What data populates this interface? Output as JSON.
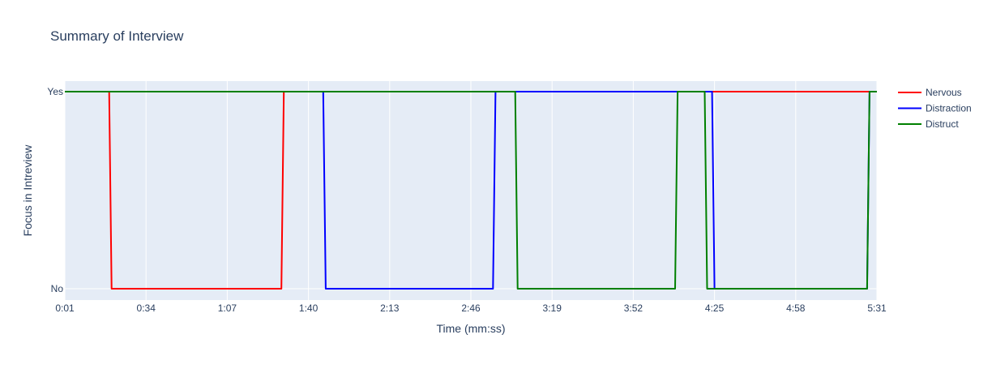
{
  "chart_data": {
    "type": "line",
    "title": "Summary of Interview",
    "xlabel": "Time (mm:ss)",
    "ylabel": "Focus in Intreview",
    "x_ticks": [
      "0:01",
      "0:34",
      "1:07",
      "1:40",
      "2:13",
      "2:46",
      "3:19",
      "3:52",
      "4:25",
      "4:58",
      "5:31"
    ],
    "y_categories": [
      "No",
      "Yes"
    ],
    "xlim": [
      "0:01",
      "5:31"
    ],
    "grid": true,
    "legend_position": "right",
    "colors": {
      "plot_background": "#e5ecf6",
      "grid": "#ffffff"
    },
    "series": [
      {
        "name": "Nervous",
        "color": "#ff0000",
        "points": [
          [
            "0:01",
            "Yes"
          ],
          [
            "0:19",
            "Yes"
          ],
          [
            "0:20",
            "No"
          ],
          [
            "1:29",
            "No"
          ],
          [
            "1:30",
            "Yes"
          ],
          [
            "5:31",
            "Yes"
          ]
        ]
      },
      {
        "name": "Distraction",
        "color": "#0000ff",
        "points": [
          [
            "0:01",
            "Yes"
          ],
          [
            "1:46",
            "Yes"
          ],
          [
            "1:47",
            "No"
          ],
          [
            "2:55",
            "No"
          ],
          [
            "2:56",
            "Yes"
          ],
          [
            "4:24",
            "Yes"
          ],
          [
            "4:25",
            "No"
          ],
          [
            "5:27",
            "No"
          ],
          [
            "5:28",
            "Yes"
          ],
          [
            "5:31",
            "Yes"
          ]
        ]
      },
      {
        "name": "Distruct",
        "color": "#008000",
        "points": [
          [
            "0:01",
            "Yes"
          ],
          [
            "3:04",
            "Yes"
          ],
          [
            "3:05",
            "No"
          ],
          [
            "4:09",
            "No"
          ],
          [
            "4:10",
            "Yes"
          ],
          [
            "4:21",
            "Yes"
          ],
          [
            "4:22",
            "No"
          ],
          [
            "5:27",
            "No"
          ],
          [
            "5:28",
            "Yes"
          ],
          [
            "5:31",
            "Yes"
          ]
        ]
      }
    ]
  }
}
